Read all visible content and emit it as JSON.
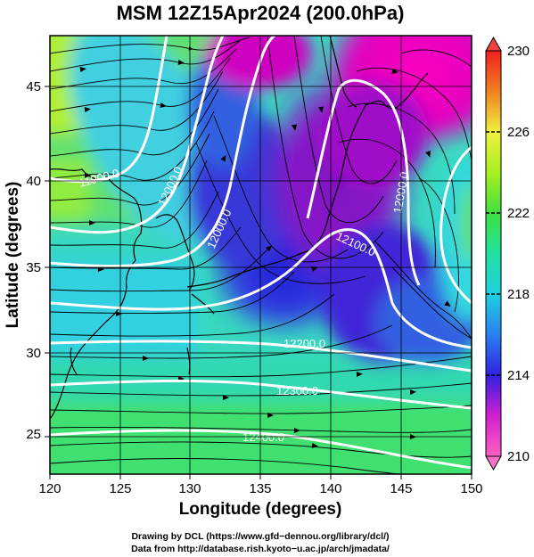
{
  "title": "MSM 12Z15Apr2024 (200.0hPa)",
  "xlabel": "Longitude (degrees)",
  "ylabel": "Latitude  (degrees)",
  "x_ticks": [
    "120",
    "125",
    "130",
    "135",
    "140",
    "145",
    "150"
  ],
  "y_ticks": [
    "25",
    "30",
    "35",
    "40",
    "45"
  ],
  "colorbar": {
    "ticks": [
      "210",
      "214",
      "218",
      "222",
      "226",
      "230"
    ],
    "range": [
      210,
      230
    ]
  },
  "contour_labels": [
    "12200.0",
    "12300.0",
    "12400.0",
    "12100.0",
    "12000.0",
    "12000.0",
    "12000.0",
    "11900.0"
  ],
  "credits": [
    "Drawing by DCL (https://www.gfd−dennou.org/library/dcl/)",
    "Data from http://database.rish.kyoto−u.ac.jp/arch/jmadata/"
  ],
  "colors": {
    "magenta": "#ff00cc",
    "purple": "#9a20c8",
    "blue": "#2a30e0",
    "cyan": "#20d0e0",
    "green": "#40e070",
    "yellow_green": "#b8f020"
  }
}
